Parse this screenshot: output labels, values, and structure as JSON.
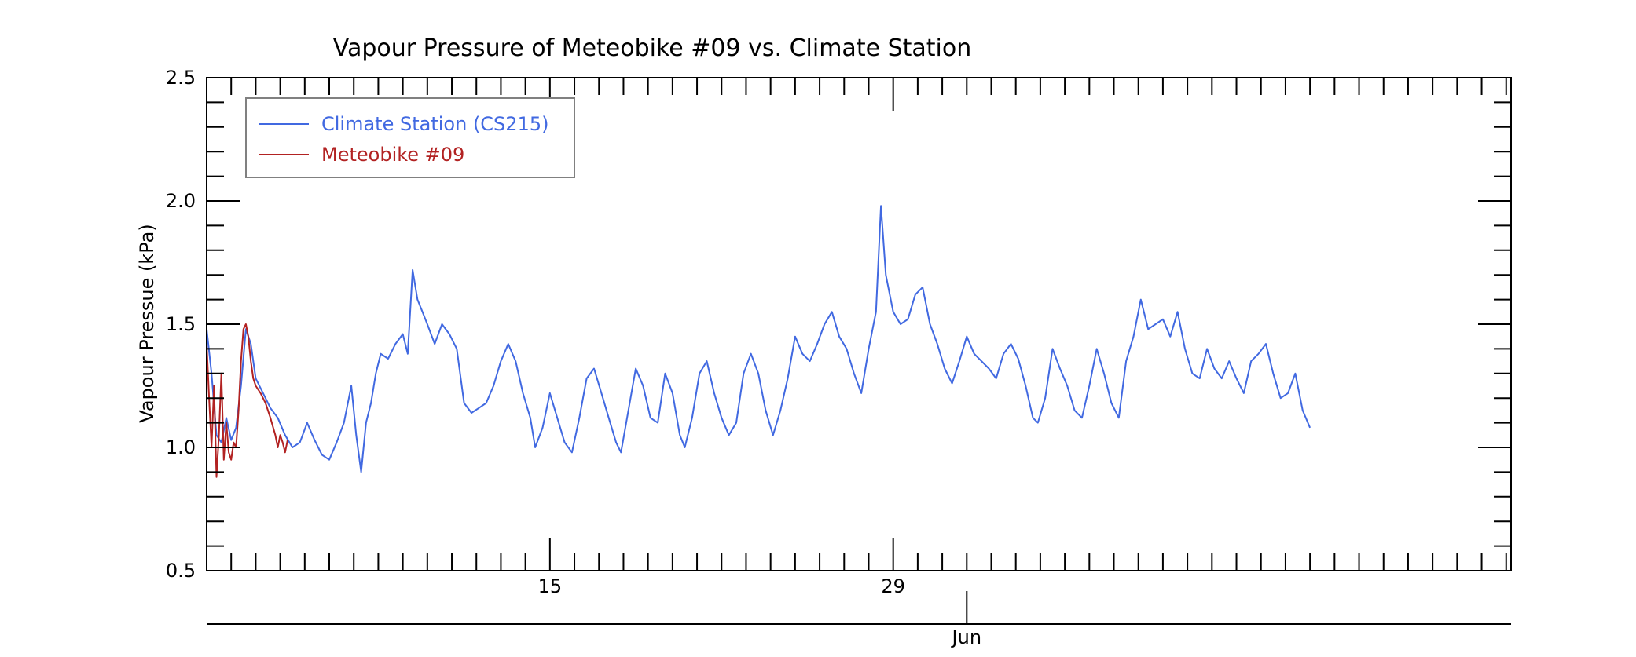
{
  "chart_data": {
    "type": "line",
    "title": "Vapour Pressure of Meteobike #09 vs. Climate Station",
    "ylabel": "Vapour Pressue (kPa)",
    "xlabel": "",
    "ylim": [
      0.5,
      2.5
    ],
    "yticks": [
      "0.5",
      "1.0",
      "1.5",
      "2.0",
      "2.5"
    ],
    "xlim_days": [
      1,
      54.2
    ],
    "x_day_ticks": [
      {
        "day": 15,
        "label": "15"
      },
      {
        "day": 29,
        "label": "29"
      }
    ],
    "x_month_ticks": [
      {
        "day": 32,
        "label": "Jun"
      }
    ],
    "grid": false,
    "legend_position": "top-left",
    "series": [
      {
        "name": "Climate Station (CS215)",
        "color": "#4169e1",
        "points": [
          [
            1.0,
            1.48
          ],
          [
            1.2,
            1.3
          ],
          [
            1.4,
            1.05
          ],
          [
            1.6,
            1.02
          ],
          [
            1.8,
            1.12
          ],
          [
            2.0,
            1.03
          ],
          [
            2.2,
            1.08
          ],
          [
            2.4,
            1.25
          ],
          [
            2.6,
            1.48
          ],
          [
            2.8,
            1.42
          ],
          [
            3.0,
            1.28
          ],
          [
            3.3,
            1.22
          ],
          [
            3.6,
            1.16
          ],
          [
            3.9,
            1.12
          ],
          [
            4.2,
            1.05
          ],
          [
            4.5,
            1.0
          ],
          [
            4.8,
            1.02
          ],
          [
            5.1,
            1.1
          ],
          [
            5.4,
            1.03
          ],
          [
            5.7,
            0.97
          ],
          [
            6.0,
            0.95
          ],
          [
            6.3,
            1.02
          ],
          [
            6.6,
            1.1
          ],
          [
            6.9,
            1.25
          ],
          [
            7.1,
            1.05
          ],
          [
            7.3,
            0.9
          ],
          [
            7.5,
            1.1
          ],
          [
            7.7,
            1.18
          ],
          [
            7.9,
            1.3
          ],
          [
            8.1,
            1.38
          ],
          [
            8.4,
            1.36
          ],
          [
            8.7,
            1.42
          ],
          [
            9.0,
            1.46
          ],
          [
            9.2,
            1.38
          ],
          [
            9.4,
            1.72
          ],
          [
            9.6,
            1.6
          ],
          [
            9.8,
            1.55
          ],
          [
            10.0,
            1.5
          ],
          [
            10.3,
            1.42
          ],
          [
            10.6,
            1.5
          ],
          [
            10.9,
            1.46
          ],
          [
            11.2,
            1.4
          ],
          [
            11.5,
            1.18
          ],
          [
            11.8,
            1.14
          ],
          [
            12.1,
            1.16
          ],
          [
            12.4,
            1.18
          ],
          [
            12.7,
            1.25
          ],
          [
            13.0,
            1.35
          ],
          [
            13.3,
            1.42
          ],
          [
            13.6,
            1.35
          ],
          [
            13.9,
            1.22
          ],
          [
            14.2,
            1.12
          ],
          [
            14.4,
            1.0
          ],
          [
            14.7,
            1.08
          ],
          [
            15.0,
            1.22
          ],
          [
            15.3,
            1.12
          ],
          [
            15.6,
            1.02
          ],
          [
            15.9,
            0.98
          ],
          [
            16.2,
            1.12
          ],
          [
            16.5,
            1.28
          ],
          [
            16.8,
            1.32
          ],
          [
            17.1,
            1.22
          ],
          [
            17.4,
            1.12
          ],
          [
            17.7,
            1.02
          ],
          [
            17.9,
            0.98
          ],
          [
            18.2,
            1.15
          ],
          [
            18.5,
            1.32
          ],
          [
            18.8,
            1.25
          ],
          [
            19.1,
            1.12
          ],
          [
            19.4,
            1.1
          ],
          [
            19.7,
            1.3
          ],
          [
            20.0,
            1.22
          ],
          [
            20.3,
            1.05
          ],
          [
            20.5,
            1.0
          ],
          [
            20.8,
            1.12
          ],
          [
            21.1,
            1.3
          ],
          [
            21.4,
            1.35
          ],
          [
            21.7,
            1.22
          ],
          [
            22.0,
            1.12
          ],
          [
            22.3,
            1.05
          ],
          [
            22.6,
            1.1
          ],
          [
            22.9,
            1.3
          ],
          [
            23.2,
            1.38
          ],
          [
            23.5,
            1.3
          ],
          [
            23.8,
            1.15
          ],
          [
            24.1,
            1.05
          ],
          [
            24.4,
            1.15
          ],
          [
            24.7,
            1.28
          ],
          [
            25.0,
            1.45
          ],
          [
            25.3,
            1.38
          ],
          [
            25.6,
            1.35
          ],
          [
            25.9,
            1.42
          ],
          [
            26.2,
            1.5
          ],
          [
            26.5,
            1.55
          ],
          [
            26.8,
            1.45
          ],
          [
            27.1,
            1.4
          ],
          [
            27.4,
            1.3
          ],
          [
            27.7,
            1.22
          ],
          [
            28.0,
            1.4
          ],
          [
            28.3,
            1.55
          ],
          [
            28.5,
            1.98
          ],
          [
            28.7,
            1.7
          ],
          [
            29.0,
            1.55
          ],
          [
            29.3,
            1.5
          ],
          [
            29.6,
            1.52
          ],
          [
            29.9,
            1.62
          ],
          [
            30.2,
            1.65
          ],
          [
            30.5,
            1.5
          ],
          [
            30.8,
            1.42
          ],
          [
            31.1,
            1.32
          ],
          [
            31.4,
            1.26
          ],
          [
            31.7,
            1.35
          ],
          [
            32.0,
            1.45
          ],
          [
            32.3,
            1.38
          ],
          [
            32.6,
            1.35
          ],
          [
            32.9,
            1.32
          ],
          [
            33.2,
            1.28
          ],
          [
            33.5,
            1.38
          ],
          [
            33.8,
            1.42
          ],
          [
            34.1,
            1.36
          ],
          [
            34.4,
            1.25
          ],
          [
            34.7,
            1.12
          ],
          [
            34.9,
            1.1
          ],
          [
            35.2,
            1.2
          ],
          [
            35.5,
            1.4
          ],
          [
            35.8,
            1.32
          ],
          [
            36.1,
            1.25
          ],
          [
            36.4,
            1.15
          ],
          [
            36.7,
            1.12
          ],
          [
            37.0,
            1.25
          ],
          [
            37.3,
            1.4
          ],
          [
            37.6,
            1.3
          ],
          [
            37.9,
            1.18
          ],
          [
            38.2,
            1.12
          ],
          [
            38.5,
            1.35
          ],
          [
            38.8,
            1.45
          ],
          [
            39.1,
            1.6
          ],
          [
            39.4,
            1.48
          ],
          [
            39.7,
            1.5
          ],
          [
            40.0,
            1.52
          ],
          [
            40.3,
            1.45
          ],
          [
            40.6,
            1.55
          ],
          [
            40.9,
            1.4
          ],
          [
            41.2,
            1.3
          ],
          [
            41.5,
            1.28
          ],
          [
            41.8,
            1.4
          ],
          [
            42.1,
            1.32
          ],
          [
            42.4,
            1.28
          ],
          [
            42.7,
            1.35
          ],
          [
            43.0,
            1.28
          ],
          [
            43.3,
            1.22
          ],
          [
            43.6,
            1.35
          ],
          [
            43.9,
            1.38
          ],
          [
            44.2,
            1.42
          ],
          [
            44.5,
            1.3
          ],
          [
            44.8,
            1.2
          ],
          [
            45.1,
            1.22
          ],
          [
            45.4,
            1.3
          ],
          [
            45.7,
            1.15
          ],
          [
            46.0,
            1.08
          ]
        ]
      },
      {
        "name": "Meteobike #09",
        "color": "#b22222",
        "points": [
          [
            1.0,
            1.42
          ],
          [
            1.1,
            1.2
          ],
          [
            1.2,
            1.0
          ],
          [
            1.3,
            1.25
          ],
          [
            1.4,
            0.88
          ],
          [
            1.5,
            1.05
          ],
          [
            1.6,
            1.3
          ],
          [
            1.7,
            0.95
          ],
          [
            1.8,
            1.1
          ],
          [
            1.9,
            0.98
          ],
          [
            2.0,
            0.95
          ],
          [
            2.1,
            1.02
          ],
          [
            2.2,
            1.0
          ],
          [
            2.3,
            1.15
          ],
          [
            2.4,
            1.35
          ],
          [
            2.5,
            1.48
          ],
          [
            2.6,
            1.5
          ],
          [
            2.7,
            1.45
          ],
          [
            2.8,
            1.35
          ],
          [
            2.9,
            1.28
          ],
          [
            3.0,
            1.25
          ],
          [
            3.2,
            1.22
          ],
          [
            3.4,
            1.18
          ],
          [
            3.6,
            1.12
          ],
          [
            3.8,
            1.05
          ],
          [
            3.9,
            1.0
          ],
          [
            4.0,
            1.05
          ],
          [
            4.1,
            1.02
          ],
          [
            4.2,
            0.98
          ],
          [
            4.3,
            1.03
          ]
        ]
      }
    ]
  }
}
